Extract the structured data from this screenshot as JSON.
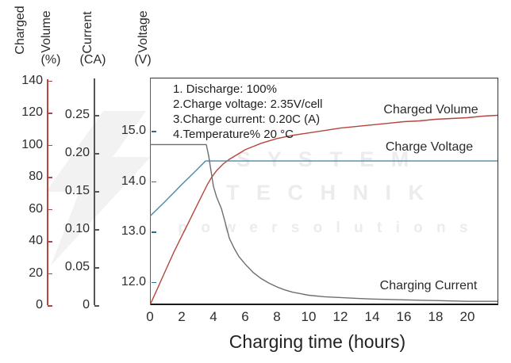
{
  "axis_titles": {
    "charged": "Charged",
    "volume": "Volume",
    "percent": "(%)",
    "current": "Current",
    "ca": "(CA)",
    "voltage": "Voltage",
    "v": "(V)"
  },
  "annotation": {
    "lines": [
      "1. Discharge: 100%",
      "2.Charge voltage: 2.35V/cell",
      "3.Charge current: 0.20C (A)",
      "4.Temperature% 20 °C"
    ]
  },
  "curve_labels": {
    "volume": "Charged Volume",
    "voltage": "Charge Voltage",
    "current": "Charging Current"
  },
  "watermark": {
    "line1": "S Y S T E M",
    "line2": "T E C H N I K",
    "line3": "p o w e r   s o l u t i o n s",
    "color": "#ececec"
  },
  "colors": {
    "volume_axis": "#b5453e",
    "current_axis": "#555555",
    "voltage_axis": "#2f6b86",
    "frame": "#333333",
    "text": "#2b2b2b"
  },
  "chart_data": {
    "type": "line",
    "title": "",
    "grid": false,
    "legend_position": "inline-right",
    "x_axis": {
      "title": "Charging time (hours)",
      "range": [
        0,
        21.95
      ],
      "ticks": [
        0,
        2,
        4,
        6,
        8,
        10,
        12,
        14,
        16,
        18,
        20
      ]
    },
    "axes": {
      "volume": {
        "title": "Charged Volume",
        "unit": "(%)",
        "range": [
          0,
          142
        ],
        "color": "#b5453e",
        "ticks": [
          {
            "v": 0,
            "label": "0"
          },
          {
            "v": 20,
            "label": "20"
          },
          {
            "v": 40,
            "label": "40"
          },
          {
            "v": 60,
            "label": "60"
          },
          {
            "v": 80,
            "label": "80"
          },
          {
            "v": 100,
            "label": "100"
          },
          {
            "v": 120,
            "label": "120"
          },
          {
            "v": 140,
            "label": "140"
          }
        ]
      },
      "current": {
        "title": "Current",
        "unit": "(CA)",
        "range": [
          0,
          0.299
        ],
        "color": "#555555",
        "ticks": [
          {
            "v": 0,
            "label": "0"
          },
          {
            "v": 0.05,
            "label": "0.05"
          },
          {
            "v": 0.1,
            "label": "0.10"
          },
          {
            "v": 0.15,
            "label": "0.15"
          },
          {
            "v": 0.2,
            "label": "0.20"
          },
          {
            "v": 0.25,
            "label": "0.25"
          }
        ]
      },
      "voltage": {
        "title": "Voltage",
        "unit": "(V)",
        "range": [
          11.5,
          16.05
        ],
        "color": "#2f6b86",
        "ticks": [
          {
            "v": 12.0,
            "label": "12.0"
          },
          {
            "v": 13.0,
            "label": "13.0"
          },
          {
            "v": 14.0,
            "label": "14.0"
          },
          {
            "v": 15.0,
            "label": "15.0"
          }
        ]
      }
    },
    "conditions": {
      "discharge": "100%",
      "charge_voltage": "2.35V/cell",
      "charge_current": "0.20C (A)",
      "temperature": "20 °C"
    },
    "series": [
      {
        "id": "volume",
        "name": "Charged Volume",
        "axis": "volume",
        "color": "#b5453e",
        "points": [
          [
            0,
            0
          ],
          [
            0.5,
            11
          ],
          [
            1,
            22
          ],
          [
            1.5,
            33
          ],
          [
            2,
            43
          ],
          [
            2.5,
            53
          ],
          [
            2.8,
            59
          ],
          [
            3.1,
            65
          ],
          [
            3.4,
            71
          ],
          [
            3.6,
            75
          ],
          [
            3.9,
            80
          ],
          [
            4.2,
            84
          ],
          [
            4.6,
            88
          ],
          [
            5,
            91
          ],
          [
            5.5,
            94
          ],
          [
            6,
            97
          ],
          [
            6.5,
            99
          ],
          [
            7,
            101
          ],
          [
            7.5,
            102.5
          ],
          [
            8,
            104
          ],
          [
            9,
            106
          ],
          [
            10,
            107.5
          ],
          [
            11,
            109
          ],
          [
            12,
            110.5
          ],
          [
            13,
            111.5
          ],
          [
            14,
            112.5
          ],
          [
            15,
            113.5
          ],
          [
            16,
            114.5
          ],
          [
            17,
            115
          ],
          [
            18,
            116
          ],
          [
            19,
            116.5
          ],
          [
            20,
            117
          ],
          [
            21,
            118
          ],
          [
            21.9,
            118.5
          ]
        ]
      },
      {
        "id": "voltage",
        "name": "Charge Voltage",
        "axis": "voltage",
        "color": "#4a8aa8",
        "points": [
          [
            0,
            13.3
          ],
          [
            1,
            13.61
          ],
          [
            2,
            13.93
          ],
          [
            3,
            14.24
          ],
          [
            3.5,
            14.4
          ],
          [
            21.9,
            14.4
          ]
        ]
      },
      {
        "id": "current",
        "name": "Charging Current",
        "axis": "current",
        "color": "#6e6e6e",
        "points": [
          [
            0,
            0.211
          ],
          [
            3.55,
            0.211
          ],
          [
            3.7,
            0.196
          ],
          [
            3.85,
            0.176
          ],
          [
            4,
            0.156
          ],
          [
            4.2,
            0.142
          ],
          [
            4.5,
            0.127
          ],
          [
            4.75,
            0.108
          ],
          [
            5,
            0.088
          ],
          [
            5.3,
            0.075
          ],
          [
            5.6,
            0.064
          ],
          [
            6,
            0.054
          ],
          [
            6.5,
            0.043
          ],
          [
            7,
            0.035
          ],
          [
            7.5,
            0.029
          ],
          [
            8,
            0.024
          ],
          [
            8.5,
            0.02
          ],
          [
            9,
            0.017
          ],
          [
            9.5,
            0.015
          ],
          [
            10,
            0.013
          ],
          [
            11,
            0.011
          ],
          [
            12,
            0.01
          ],
          [
            13,
            0.009
          ],
          [
            14,
            0.008
          ],
          [
            15,
            0.0075
          ],
          [
            16,
            0.007
          ],
          [
            17,
            0.0065
          ],
          [
            18,
            0.006
          ],
          [
            19,
            0.0055
          ],
          [
            20,
            0.005
          ],
          [
            21.9,
            0.005
          ]
        ]
      }
    ]
  }
}
